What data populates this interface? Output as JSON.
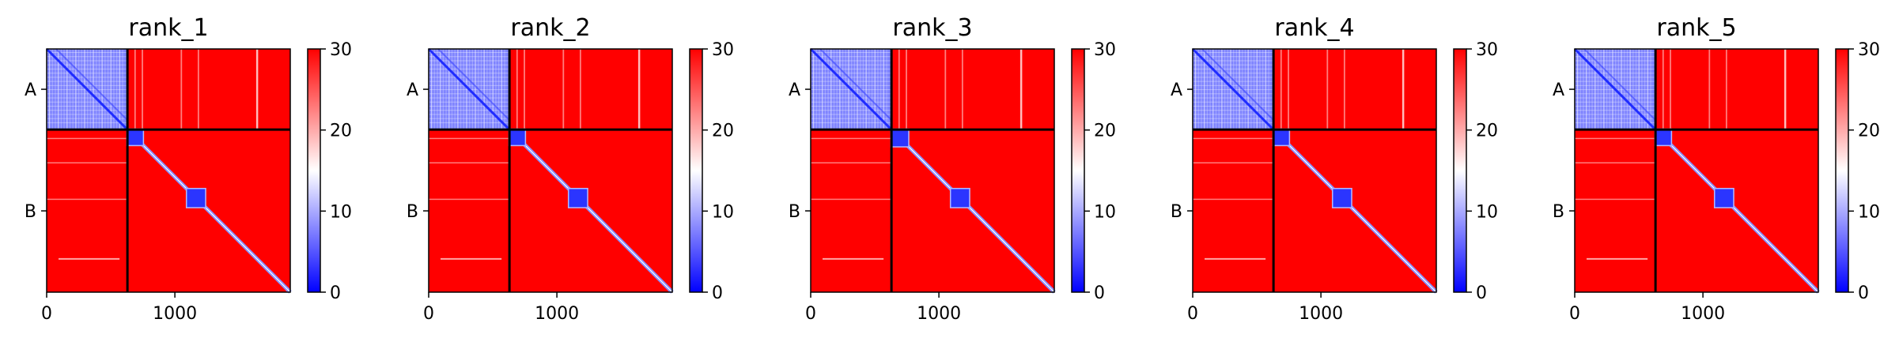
{
  "chart_data": [
    {
      "type": "heatmap",
      "title": "rank_1",
      "chain_labels": [
        "A",
        "B"
      ],
      "chain_boundary": 630,
      "sequence_length": 1900,
      "block_starts": [
        625,
        1090
      ],
      "block_sizes": [
        130,
        150
      ],
      "x_ticks": [
        0,
        1000
      ],
      "xlim": [
        0,
        1900
      ],
      "colorbar": {
        "range": [
          0,
          30
        ],
        "ticks": [
          0,
          10,
          20,
          30
        ],
        "colors": [
          "#0000ff",
          "#ffffff",
          "#ff0000"
        ]
      }
    },
    {
      "type": "heatmap",
      "title": "rank_2",
      "chain_labels": [
        "A",
        "B"
      ],
      "chain_boundary": 630,
      "sequence_length": 1900,
      "block_starts": [
        625,
        1090
      ],
      "block_sizes": [
        130,
        150
      ],
      "x_ticks": [
        0,
        1000
      ],
      "xlim": [
        0,
        1900
      ],
      "colorbar": {
        "range": [
          0,
          30
        ],
        "ticks": [
          0,
          10,
          20,
          30
        ],
        "colors": [
          "#0000ff",
          "#ffffff",
          "#ff0000"
        ]
      }
    },
    {
      "type": "heatmap",
      "title": "rank_3",
      "chain_labels": [
        "A",
        "B"
      ],
      "chain_boundary": 630,
      "sequence_length": 1900,
      "block_starts": [
        625,
        1090
      ],
      "block_sizes": [
        140,
        150
      ],
      "x_ticks": [
        0,
        1000
      ],
      "xlim": [
        0,
        1900
      ],
      "colorbar": {
        "range": [
          0,
          30
        ],
        "ticks": [
          0,
          10,
          20,
          30
        ],
        "colors": [
          "#0000ff",
          "#ffffff",
          "#ff0000"
        ]
      }
    },
    {
      "type": "heatmap",
      "title": "rank_4",
      "chain_labels": [
        "A",
        "B"
      ],
      "chain_boundary": 630,
      "sequence_length": 1900,
      "block_starts": [
        625,
        1090
      ],
      "block_sizes": [
        130,
        150
      ],
      "x_ticks": [
        0,
        1000
      ],
      "xlim": [
        0,
        1900
      ],
      "colorbar": {
        "range": [
          0,
          30
        ],
        "ticks": [
          0,
          10,
          20,
          30
        ],
        "colors": [
          "#0000ff",
          "#ffffff",
          "#ff0000"
        ]
      }
    },
    {
      "type": "heatmap",
      "title": "rank_5",
      "chain_labels": [
        "A",
        "B"
      ],
      "chain_boundary": 630,
      "sequence_length": 1900,
      "block_starts": [
        625,
        1090
      ],
      "block_sizes": [
        130,
        150
      ],
      "x_ticks": [
        0,
        1000
      ],
      "xlim": [
        0,
        1900
      ],
      "colorbar": {
        "range": [
          0,
          30
        ],
        "ticks": [
          0,
          10,
          20,
          30
        ],
        "colors": [
          "#0000ff",
          "#ffffff",
          "#ff0000"
        ]
      }
    }
  ]
}
